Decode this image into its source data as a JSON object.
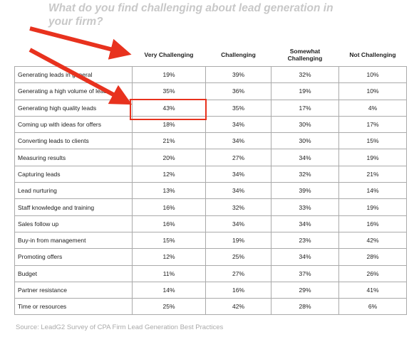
{
  "title": "What do you find challenging about lead generation in your firm?",
  "table": {
    "header": [
      "",
      "Very Challenging",
      "Challenging",
      "Somewhat Challenging",
      "Not Challenging"
    ],
    "rows": [
      [
        "Generating leads in general",
        "19%",
        "39%",
        "32%",
        "10%"
      ],
      [
        "Generating a high volume of leads",
        "35%",
        "36%",
        "19%",
        "10%"
      ],
      [
        "Generating high quality leads",
        "43%",
        "35%",
        "17%",
        "4%"
      ],
      [
        "Coming up with ideas for offers",
        "18%",
        "34%",
        "30%",
        "17%"
      ],
      [
        "Converting leads to clients",
        "21%",
        "34%",
        "30%",
        "15%"
      ],
      [
        "Measuring results",
        "20%",
        "27%",
        "34%",
        "19%"
      ],
      [
        "Capturing leads",
        "12%",
        "34%",
        "32%",
        "21%"
      ],
      [
        "Lead nurturing",
        "13%",
        "34%",
        "39%",
        "14%"
      ],
      [
        "Staff knowledge and training",
        "16%",
        "32%",
        "33%",
        "19%"
      ],
      [
        "Sales follow up",
        "16%",
        "34%",
        "34%",
        "16%"
      ],
      [
        "Buy-in from management",
        "15%",
        "19%",
        "23%",
        "42%"
      ],
      [
        "Promoting offers",
        "12%",
        "25%",
        "34%",
        "28%"
      ],
      [
        "Budget",
        "11%",
        "27%",
        "37%",
        "26%"
      ],
      [
        "Partner resistance",
        "14%",
        "16%",
        "29%",
        "41%"
      ],
      [
        "Time or resources",
        "25%",
        "42%",
        "28%",
        "6%"
      ]
    ]
  },
  "source": "Source: LeadG2 Survey of CPA Firm Lead Generation Best Practices"
}
